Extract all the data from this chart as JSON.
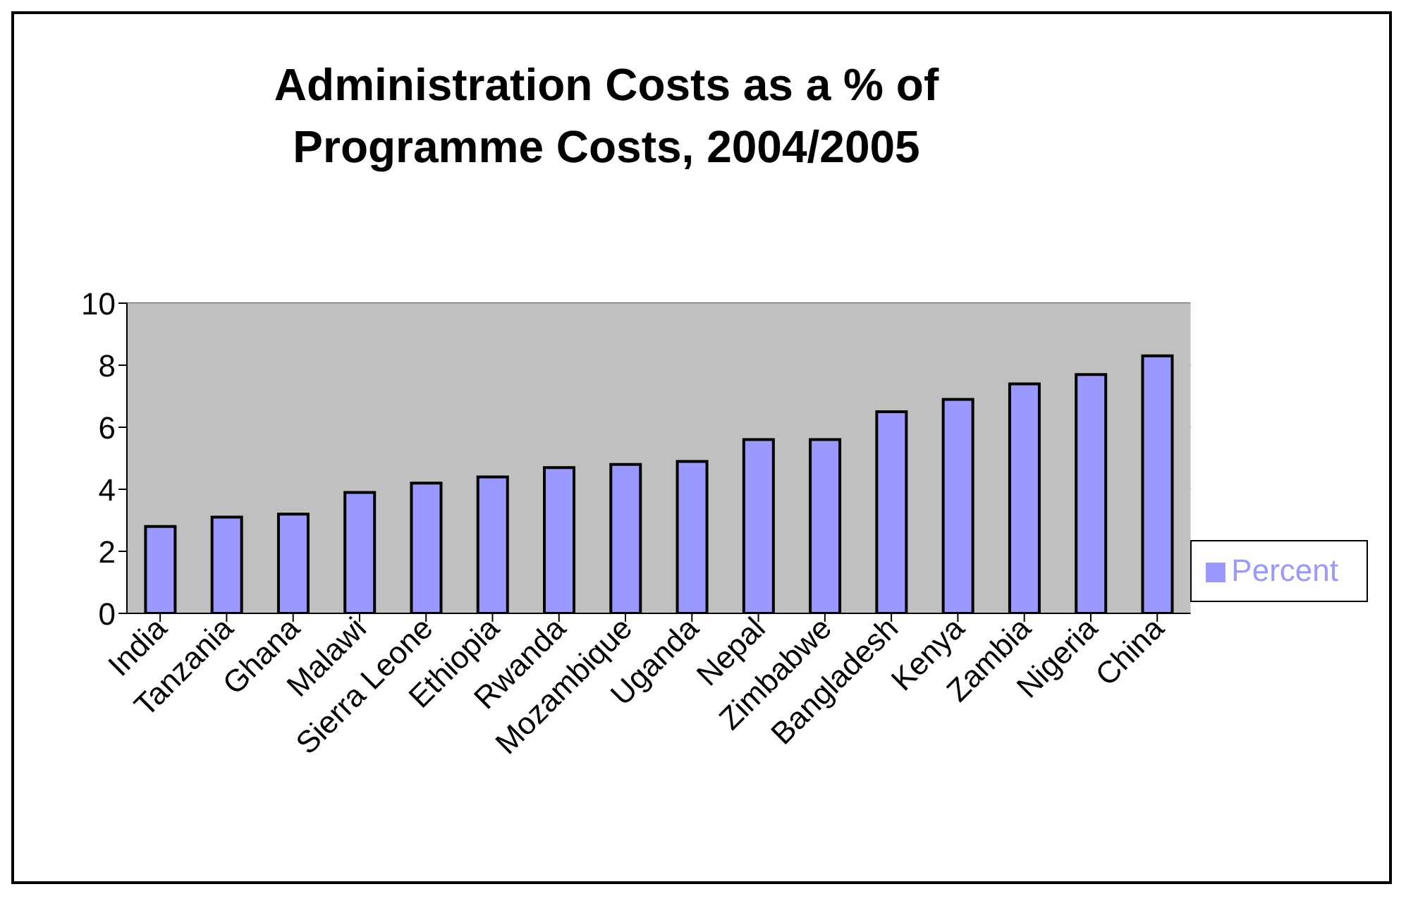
{
  "chart_data": {
    "type": "bar",
    "title": "Administration Costs as a % of Programme Costs, 2004/2005",
    "categories": [
      "India",
      "Tanzania",
      "Ghana",
      "Malawi",
      "Sierra Leone",
      "Ethiopia",
      "Rwanda",
      "Mozambique",
      "Uganda",
      "Nepal",
      "Zimbabwe",
      "Bangladesh",
      "Kenya",
      "Zambia",
      "Nigeria",
      "China"
    ],
    "series": [
      {
        "name": "Percent",
        "color": "#9999ff",
        "values": [
          2.8,
          3.1,
          3.2,
          3.9,
          4.2,
          4.4,
          4.7,
          4.8,
          4.9,
          5.6,
          5.6,
          6.5,
          6.9,
          7.4,
          7.7,
          8.3
        ]
      }
    ],
    "ylim": [
      0,
      10
    ],
    "yticks": [
      0,
      2,
      4,
      6,
      8,
      10
    ],
    "grid": "y",
    "legend": "right"
  }
}
